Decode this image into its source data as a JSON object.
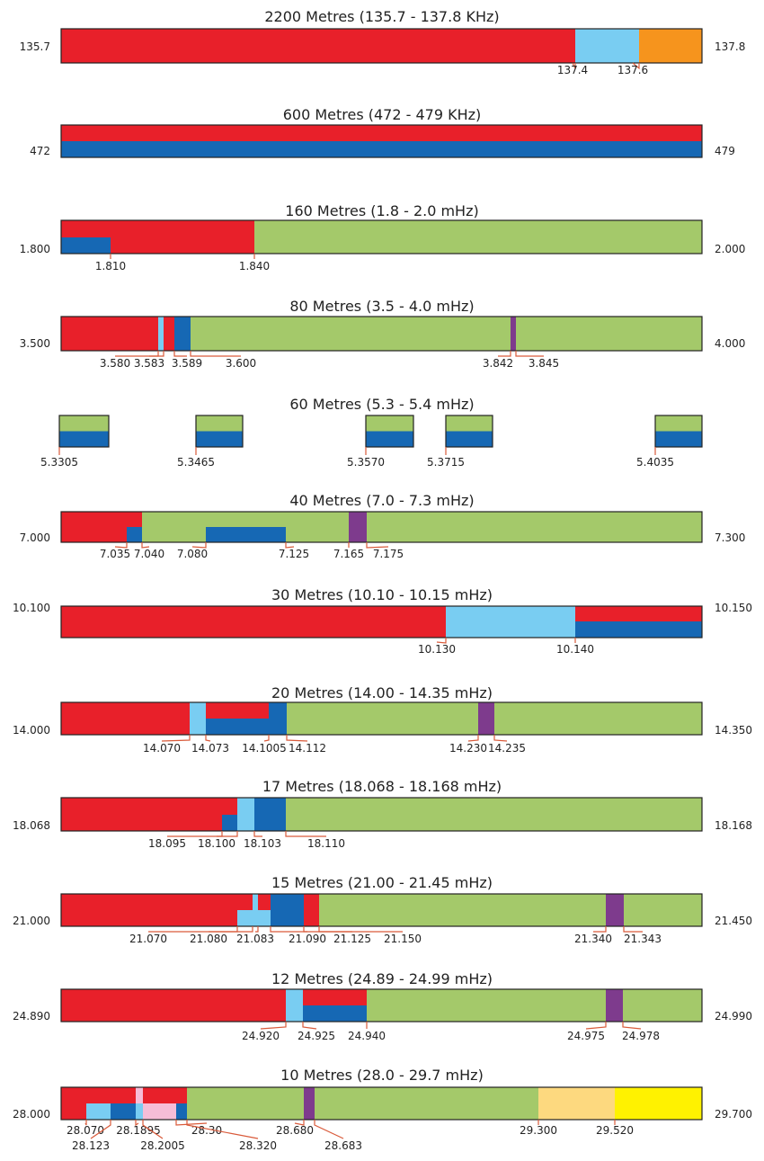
{
  "colors": {
    "red": "#e8202a",
    "lightblue": "#79cdf2",
    "blue": "#1668b4",
    "orange": "#f6941d",
    "green": "#a4c96a",
    "purple": "#7e3b8d",
    "pink": "#f6bdd7",
    "peach": "#fdd97f",
    "yellow": "#fff200"
  },
  "bands": [
    {
      "title": "2200 Metres (135.7 - 137.8 KHz)",
      "left": "135.7",
      "right": "137.8",
      "labels": [
        "137.4",
        "137.6"
      ]
    },
    {
      "title": "600 Metres (472 - 479 KHz)",
      "left": "472",
      "right": "479",
      "labels": []
    },
    {
      "title": "160 Metres (1.8 - 2.0 mHz)",
      "left": "1.800",
      "right": "2.000",
      "labels": [
        "1.810",
        "1.840"
      ]
    },
    {
      "title": "80 Metres (3.5 - 4.0 mHz)",
      "left": "3.500",
      "right": "4.000",
      "labels": [
        "3.580",
        "3.583",
        "3.589",
        "3.600",
        "3.842",
        "3.845"
      ]
    },
    {
      "title": "60 Metres (5.3 - 5.4 mHz)",
      "left": "",
      "right": "",
      "labels": [
        "5.3305",
        "5.3465",
        "5.3570",
        "5.3715",
        "5.4035"
      ]
    },
    {
      "title": "40 Metres (7.0 - 7.3 mHz)",
      "left": "7.000",
      "right": "7.300",
      "labels": [
        "7.035",
        "7.040",
        "7.080",
        "7.125",
        "7.165",
        "7.175"
      ]
    },
    {
      "title": "30 Metres (10.10 - 10.15 mHz)",
      "left": "10.100",
      "right": "10.150",
      "labels": [
        "10.130",
        "10.140"
      ]
    },
    {
      "title": "20 Metres (14.00 - 14.35 mHz)",
      "left": "14.000",
      "right": "14.350",
      "labels": [
        "14.070",
        "14.073",
        "14.1005",
        "14.112",
        "14.230",
        "14.235"
      ]
    },
    {
      "title": "17 Metres (18.068 - 18.168 mHz)",
      "left": "18.068",
      "right": "18.168",
      "labels": [
        "18.095",
        "18.100",
        "18.103",
        "18.110"
      ]
    },
    {
      "title": "15 Metres (21.00 - 21.45 mHz)",
      "left": "21.000",
      "right": "21.450",
      "labels": [
        "21.070",
        "21.080",
        "21.083",
        "21.090",
        "21.125",
        "21.150",
        "21.340",
        "21.343"
      ]
    },
    {
      "title": "12 Metres (24.89 - 24.99 mHz)",
      "left": "24.890",
      "right": "24.990",
      "labels": [
        "24.920",
        "24.925",
        "24.940",
        "24.975",
        "24.978"
      ]
    },
    {
      "title": "10 Metres (28.0 - 29.7 mHz)",
      "left": "28.000",
      "right": "29.700",
      "labels": [
        "28.070",
        "28.123",
        "28.1895",
        "28.2005",
        "28.30",
        "28.320",
        "28.680",
        "28.683",
        "29.300",
        "29.520"
      ]
    }
  ]
}
